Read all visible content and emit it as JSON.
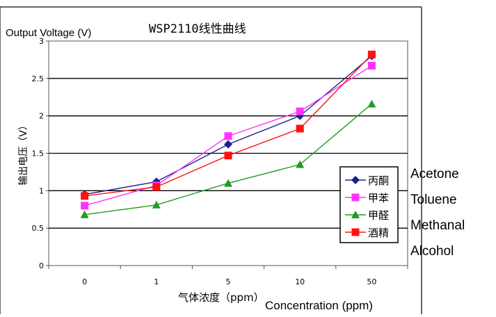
{
  "chart_data": {
    "type": "line",
    "title": "WSP2110线性曲线",
    "ylabel_cn": "输出电压（V）",
    "ylabel_en": "Output Voltage (V)",
    "xlabel_cn": "气体浓度（ppm）",
    "xlabel_en": "Concentration (ppm)",
    "categories": [
      "0",
      "1",
      "5",
      "10",
      "50"
    ],
    "yticks": [
      "0",
      "0.5",
      "1",
      "1.5",
      "2",
      "2.5",
      "3"
    ],
    "ylim": [
      0,
      3
    ],
    "grid": true,
    "legend_position": "right",
    "series": [
      {
        "name": "丙酮",
        "name_en": "Acetone",
        "marker": "diamond",
        "color": "#1a1f8c",
        "values": [
          0.95,
          1.12,
          1.62,
          2.0,
          2.8
        ]
      },
      {
        "name": "甲苯",
        "name_en": "Toluene",
        "marker": "square",
        "color": "#ff33ff",
        "values": [
          0.8,
          1.07,
          1.73,
          2.06,
          2.67
        ]
      },
      {
        "name": "甲醛",
        "name_en": "Methanal",
        "marker": "triangle",
        "color": "#229922",
        "values": [
          0.68,
          0.81,
          1.1,
          1.35,
          2.16
        ]
      },
      {
        "name": "酒精",
        "name_en": "Alcohol",
        "marker": "square",
        "color": "#ff1111",
        "values": [
          0.93,
          1.05,
          1.47,
          1.83,
          2.82
        ]
      }
    ]
  }
}
